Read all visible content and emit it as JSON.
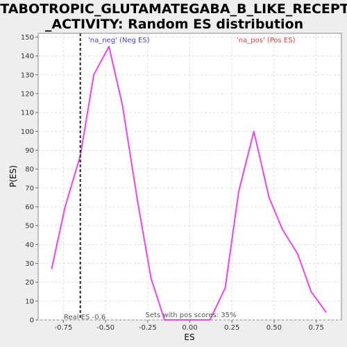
{
  "chart_data": {
    "type": "line",
    "title": [
      "METABOTROPIC_GLUTAMATEGABA_B_LIKE_RECEPTOR",
      "_ACTIVITY: Random ES distribution"
    ],
    "xlabel": "ES",
    "ylabel": "P(ES)",
    "xlim": [
      -0.9,
      0.9
    ],
    "ylim": [
      0,
      152
    ],
    "x_ticks": [
      -0.75,
      -0.5,
      -0.25,
      0.0,
      0.25,
      0.5,
      0.75
    ],
    "x_tick_labels": [
      "-0.75",
      "-0.50",
      "-0.25",
      "0.00",
      "0.25",
      "0.50",
      "0.75"
    ],
    "y_ticks": [
      0,
      10,
      20,
      30,
      40,
      50,
      60,
      70,
      80,
      90,
      100,
      110,
      120,
      130,
      140,
      150
    ],
    "grid": true,
    "series": [
      {
        "name": "Random ES distribution",
        "color": "#ee44ee",
        "x": [
          -0.82,
          -0.74,
          -0.65,
          -0.57,
          -0.48,
          -0.4,
          -0.31,
          -0.23,
          -0.15,
          -0.06,
          0.03,
          0.12,
          0.21,
          0.29,
          0.38,
          0.47,
          0.55,
          0.64,
          0.72,
          0.81
        ],
        "y": [
          27,
          60,
          87,
          130,
          145,
          114,
          63,
          22,
          0,
          0,
          0,
          0,
          17,
          68,
          100,
          65,
          48,
          35,
          15,
          4
        ]
      }
    ],
    "real_es": {
      "value": -0.65,
      "label": "Real ES -0.6",
      "color": "#222222"
    },
    "annotations": {
      "neg_label": "'na_neg' (Neg ES)",
      "neg_color": "#4444cc",
      "pos_label": "'na_pos' (Pos ES)",
      "pos_color": "#dd4444",
      "sets_label": "Sets with pos scores: 35%"
    }
  }
}
